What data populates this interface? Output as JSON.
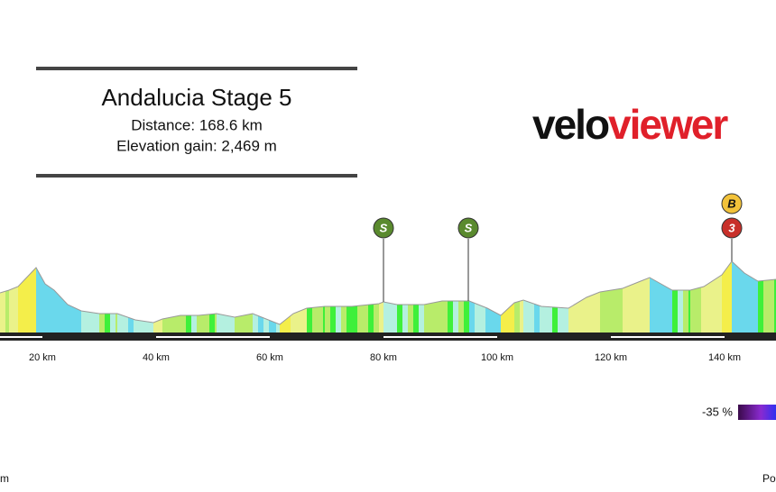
{
  "header": {
    "title": "Andalucia Stage 5",
    "distance": "Distance: 168.6 km",
    "elevation_gain": "Elevation gain: 2,469 m"
  },
  "logo": {
    "velo": "velo",
    "viewer": "viewer"
  },
  "km_labels": [
    "20 km",
    "40 km",
    "60 km",
    "80 km",
    "100 km",
    "120 km",
    "140 km"
  ],
  "markers": [
    {
      "label": "S"
    },
    {
      "label": "S"
    },
    {
      "label": "B"
    },
    {
      "label": "3"
    }
  ],
  "legend": {
    "label": "-35 %"
  },
  "footer": {
    "left": "m",
    "right": "Po"
  }
}
